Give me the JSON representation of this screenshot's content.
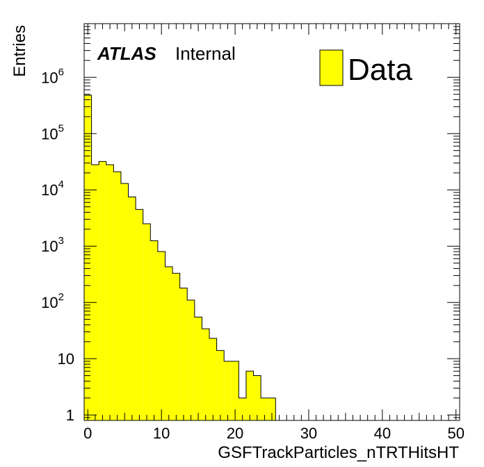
{
  "chart_data": {
    "type": "bar",
    "histogram": true,
    "xlabel": "GSFTrackParticles_nTRTHitsHT",
    "ylabel": "Entries",
    "log_y": true,
    "xlim": [
      -0.5,
      50.5
    ],
    "ylim": [
      0.8,
      9000000
    ],
    "bin_edges_start": -0.5,
    "bin_width": 1,
    "values": [
      480000,
      28000,
      32000,
      28000,
      21000,
      13000,
      7500,
      4500,
      2500,
      1250,
      800,
      430,
      330,
      180,
      110,
      55,
      34,
      23,
      14,
      9,
      9,
      2,
      6,
      5,
      2,
      2,
      0,
      0,
      0,
      0,
      0,
      0,
      0,
      0,
      0,
      0,
      0,
      0,
      0,
      0,
      0,
      0,
      0,
      0,
      0,
      0,
      0,
      0,
      0,
      0,
      0
    ],
    "fill_color": "#ffff00",
    "line_color": "#000000",
    "x_ticks": [
      {
        "value": 0,
        "label": "0"
      },
      {
        "value": 10,
        "label": "10"
      },
      {
        "value": 20,
        "label": "20"
      },
      {
        "value": 30,
        "label": "30"
      },
      {
        "value": 40,
        "label": "40"
      },
      {
        "value": 50,
        "label": "50"
      }
    ],
    "y_ticks": [
      {
        "value": 1,
        "base": "1",
        "exp": ""
      },
      {
        "value": 10,
        "base": "10",
        "exp": ""
      },
      {
        "value": 100,
        "base": "10",
        "exp": "2"
      },
      {
        "value": 1000,
        "base": "10",
        "exp": "3"
      },
      {
        "value": 10000,
        "base": "10",
        "exp": "4"
      },
      {
        "value": 100000,
        "base": "10",
        "exp": "5"
      },
      {
        "value": 1000000,
        "base": "10",
        "exp": "6"
      }
    ],
    "legend": {
      "placement": "top-right",
      "entries": [
        {
          "label": "Data",
          "color": "#ffff00"
        }
      ]
    },
    "annotations": {
      "experiment": "ATLAS",
      "status": "Internal"
    },
    "grid": false
  }
}
